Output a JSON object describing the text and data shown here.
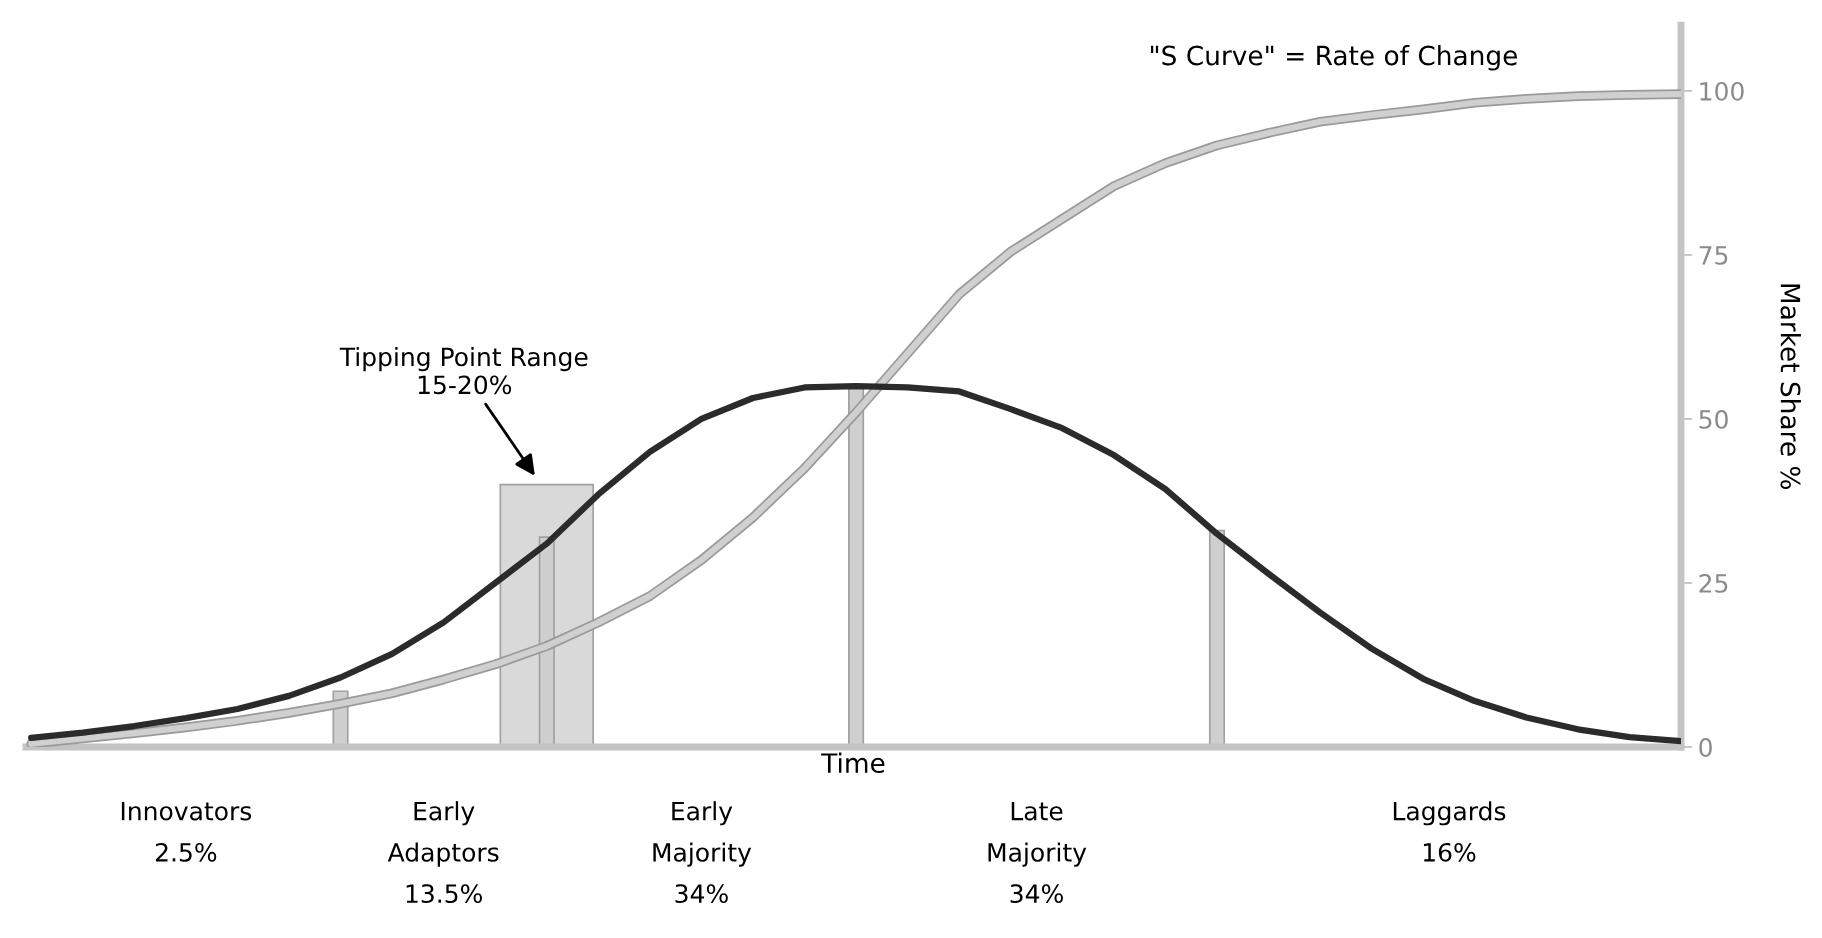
{
  "chart_data": {
    "type": "line",
    "xlabel": "Time",
    "ylabel": "Market Share %",
    "categories": [
      null,
      null,
      null,
      null,
      null,
      null,
      null,
      null,
      null,
      null,
      null,
      null,
      null,
      null,
      null,
      null,
      null,
      null,
      null,
      null,
      null,
      null,
      null,
      null,
      null,
      null,
      null,
      null,
      null,
      null,
      null,
      null,
      null
    ],
    "series": [
      {
        "type": "bar",
        "color": "#d9d9d9",
        "values": [
          null,
          null,
          null,
          null,
          null,
          null,
          null,
          null,
          null,
          null,
          40,
          null,
          null,
          null,
          null,
          null,
          null,
          null,
          null,
          null,
          null,
          null,
          null,
          null,
          null,
          null,
          null,
          null,
          null,
          null,
          null,
          null,
          null
        ]
      },
      {
        "type": "bar",
        "color": "#cfcfcf",
        "values": [
          null,
          null,
          null,
          null,
          null,
          null,
          8.5,
          null,
          null,
          null,
          32,
          null,
          null,
          null,
          null,
          null,
          55,
          null,
          null,
          null,
          null,
          null,
          null,
          33,
          null,
          null,
          null,
          null,
          null,
          null,
          null,
          null,
          null
        ]
      },
      {
        "color": "#d0d0d0",
        "values": [
          0.5,
          1.3,
          2.1,
          3,
          4,
          5.2,
          6.6,
          8.2,
          10.3,
          12.6,
          15.4,
          19,
          23,
          28.5,
          35,
          42.5,
          51,
          60,
          69,
          75.5,
          80.5,
          85.5,
          89,
          91.7,
          93.6,
          95.3,
          96.3,
          97.2,
          98.2,
          98.8,
          99.2,
          99.4,
          99.5
        ]
      },
      {
        "color": "#2b2b2b",
        "values": [
          1.4,
          2.2,
          3.2,
          4.4,
          5.8,
          7.8,
          10.6,
          14.2,
          19,
          25,
          31,
          38.5,
          45,
          50,
          53.2,
          54.8,
          55,
          54.8,
          54.2,
          51.5,
          48.6,
          44.5,
          39.3,
          32.5,
          26.4,
          20.5,
          15,
          10.4,
          7,
          4.5,
          2.7,
          1.5,
          0.9
        ]
      }
    ],
    "ylim": [
      0,
      110
    ],
    "yticks": [
      0,
      25,
      50,
      75,
      100
    ],
    "grid": false,
    "annotations": [
      "\"S Curve\" = Rate of Change",
      "Tipping Point Range\n15-20%",
      "Innovators\n2.5%",
      "Early\nAdaptors\n13.5%",
      "Early\nMajority\n34%",
      "Late\nMajority\n34%",
      "Laggards\n16%"
    ]
  }
}
